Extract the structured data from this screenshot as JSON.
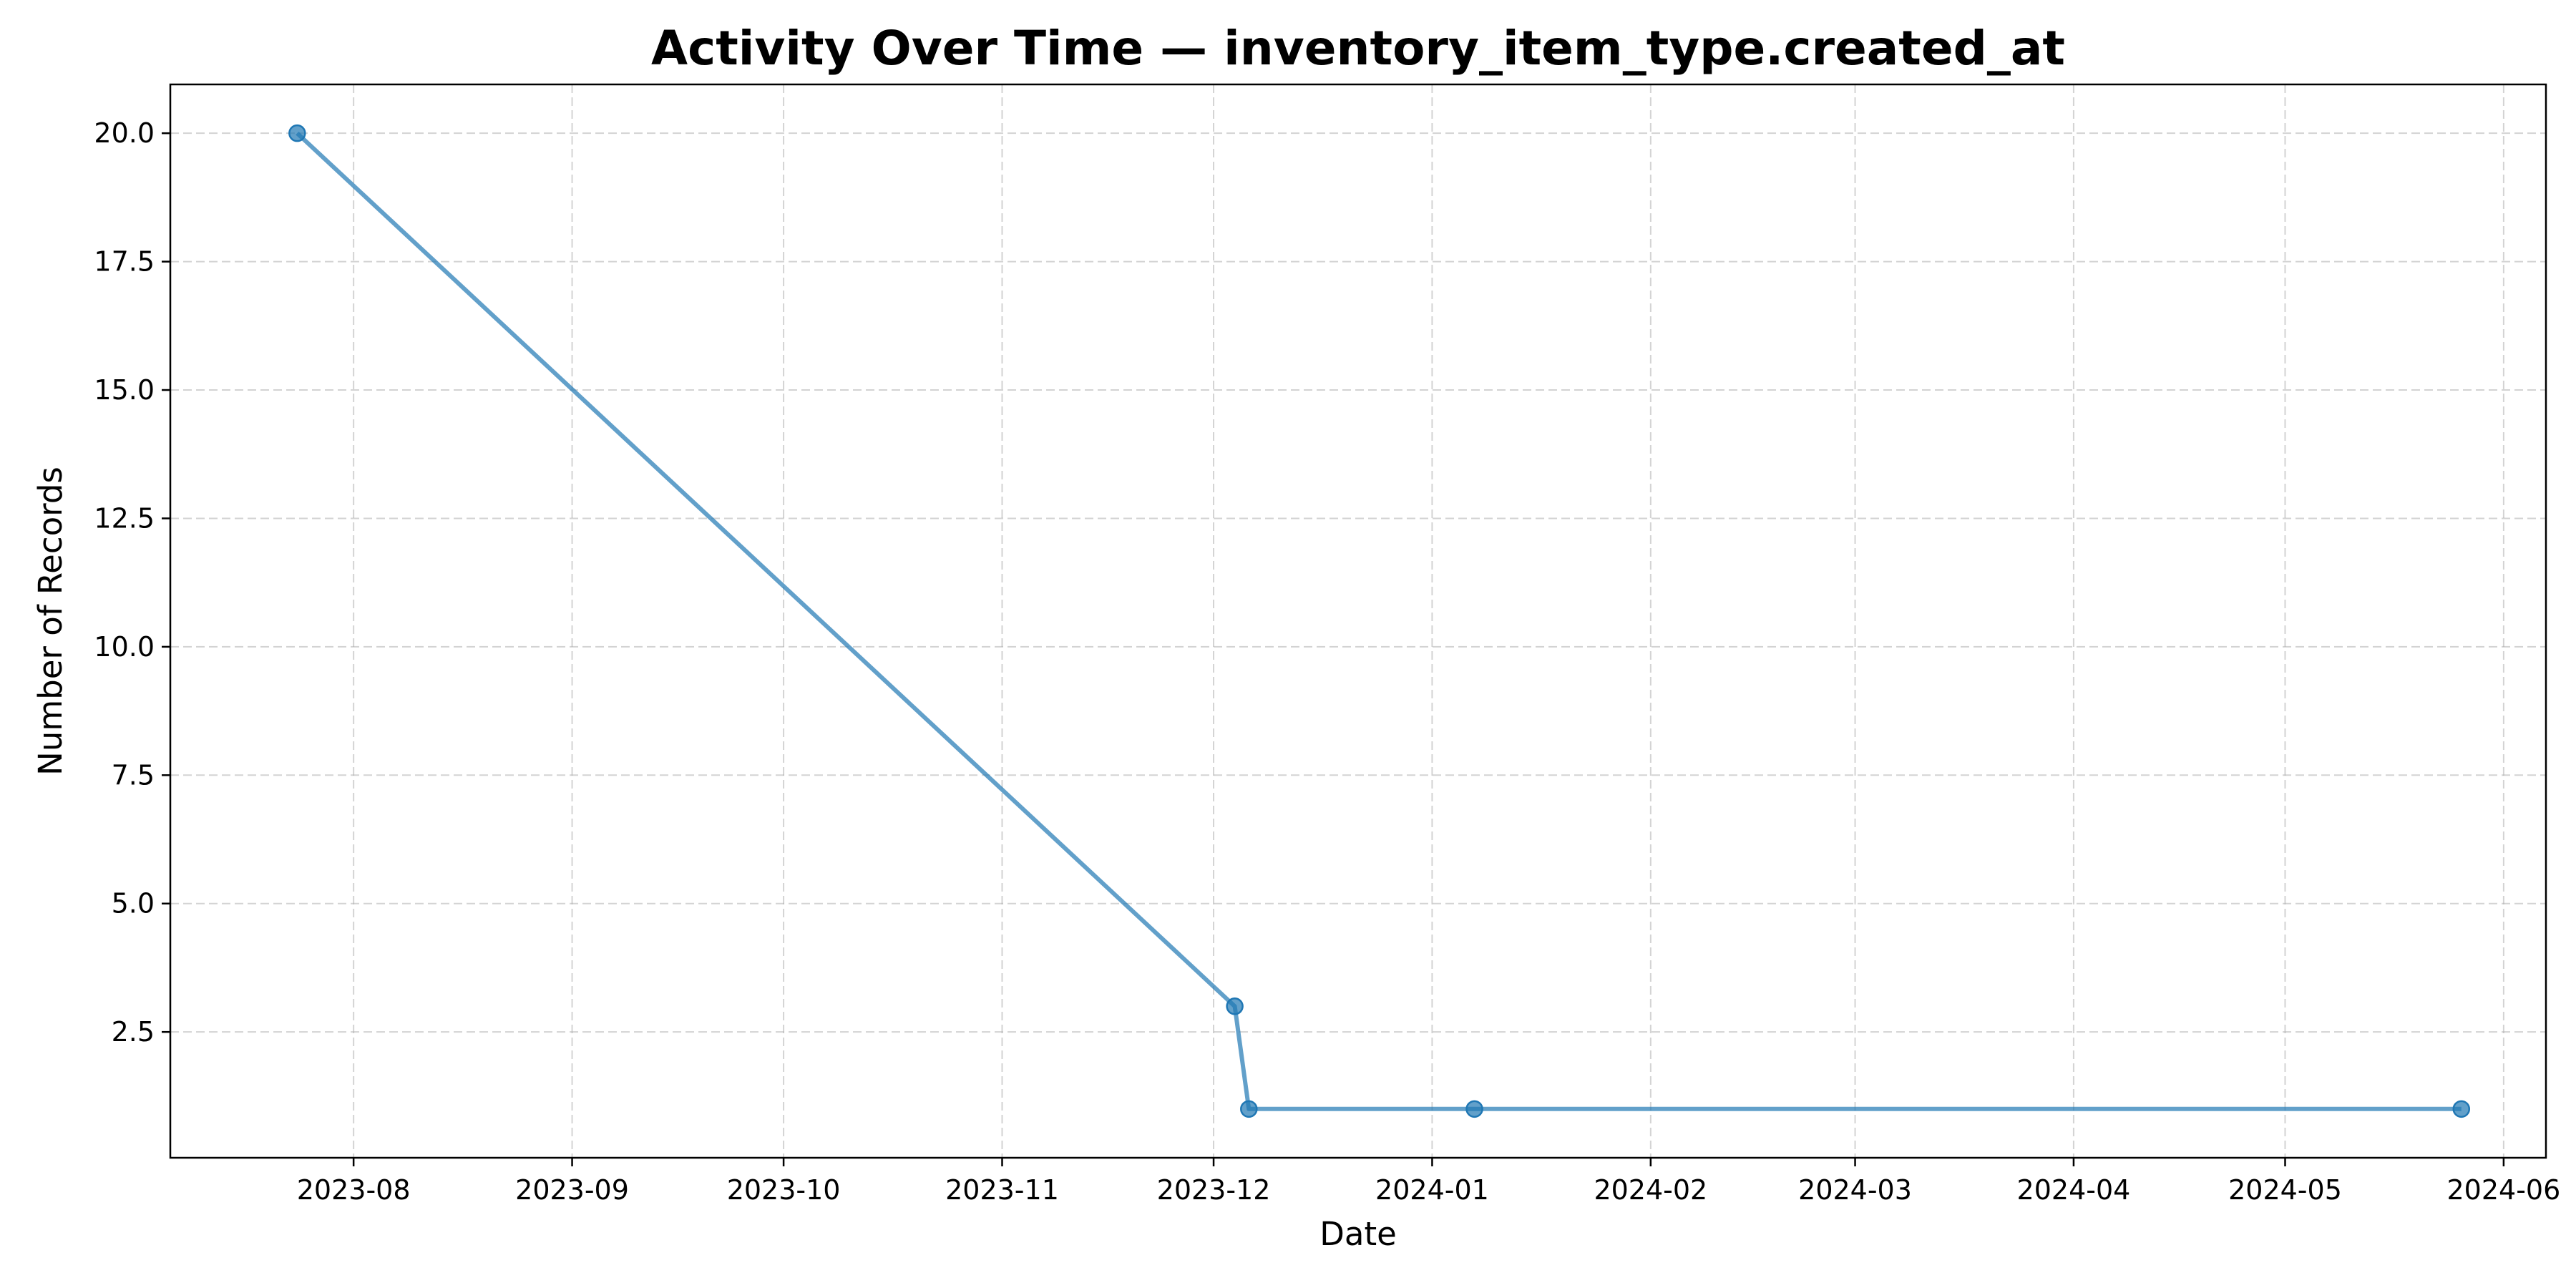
{
  "chart_data": {
    "type": "line",
    "title": "Activity Over Time — inventory_item_type.created_at",
    "xlabel": "Date",
    "ylabel": "Number of Records",
    "x_scale": "date",
    "xlim": [
      "2023-07-06",
      "2024-06-07"
    ],
    "ylim": [
      0.05,
      20.95
    ],
    "grid": true,
    "x_ticks": [
      "2023-08",
      "2023-09",
      "2023-10",
      "2023-11",
      "2023-12",
      "2024-01",
      "2024-02",
      "2024-03",
      "2024-04",
      "2024-05",
      "2024-06"
    ],
    "y_ticks": [
      "2.5",
      "5.0",
      "7.5",
      "10.0",
      "12.5",
      "15.0",
      "17.5",
      "20.0"
    ],
    "series": [
      {
        "color": "#1f77b4",
        "marker": "circle",
        "points": [
          {
            "x": "2023-07-24",
            "y": 20
          },
          {
            "x": "2023-12-04",
            "y": 3
          },
          {
            "x": "2023-12-06",
            "y": 1
          },
          {
            "x": "2024-01-07",
            "y": 1
          },
          {
            "x": "2024-05-26",
            "y": 1
          }
        ]
      }
    ]
  }
}
